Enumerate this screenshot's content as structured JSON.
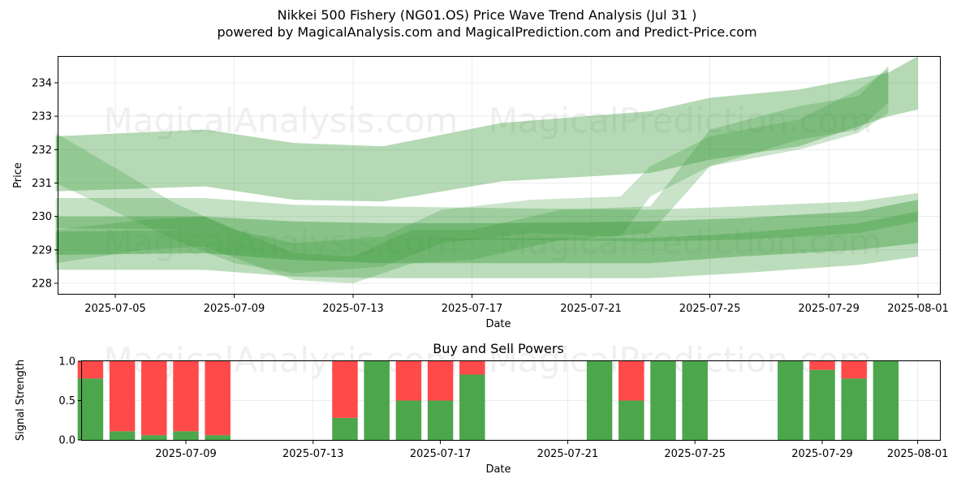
{
  "header": {
    "title": "Nikkei 500 Fishery (NG01.OS) Price Wave Trend Analysis (Jul 31 )",
    "subtitle": "powered by MagicalAnalysis.com and MagicalPrediction.com and Predict-Price.com"
  },
  "watermarks": [
    "MagicalAnalysis.com",
    "MagicalPrediction.com"
  ],
  "colors": {
    "green_band": "#3a9a3a",
    "buy": "#4ca64c",
    "sell": "#ff4a4a",
    "grid": "#e6e6e6"
  },
  "chart_data": [
    {
      "type": "area",
      "title": "",
      "xlabel": "Date",
      "ylabel": "Price",
      "x_ticks": [
        "2025-07-05",
        "2025-07-09",
        "2025-07-13",
        "2025-07-17",
        "2025-07-21",
        "2025-07-25",
        "2025-07-29",
        "2025-08-01"
      ],
      "y_ticks": [
        "228",
        "229",
        "230",
        "231",
        "232",
        "233",
        "234"
      ],
      "xlim": [
        "2025-07-02",
        "2025-08-01"
      ],
      "ylim": [
        227.65,
        234.8
      ],
      "grid": true,
      "series": [
        {
          "x": [
            "2025-07-03",
            "2025-07-08",
            "2025-07-11",
            "2025-07-14",
            "2025-07-18",
            "2025-07-23",
            "2025-07-25",
            "2025-07-28",
            "2025-07-31",
            "2025-08-01"
          ],
          "lower": [
            230.75,
            230.9,
            230.5,
            230.45,
            231.05,
            231.3,
            231.7,
            232.1,
            233.0,
            233.2
          ],
          "upper": [
            232.4,
            232.6,
            232.2,
            232.1,
            232.8,
            233.15,
            233.55,
            233.8,
            234.3,
            234.8
          ]
        },
        {
          "x": [
            "2025-07-03",
            "2025-07-08",
            "2025-07-11",
            "2025-07-14",
            "2025-07-18",
            "2025-07-23",
            "2025-07-26",
            "2025-07-30",
            "2025-08-01"
          ],
          "lower": [
            229.65,
            229.6,
            229.35,
            229.3,
            229.3,
            229.25,
            229.3,
            229.5,
            229.85
          ],
          "upper": [
            230.55,
            230.55,
            230.35,
            230.3,
            230.25,
            230.2,
            230.3,
            230.45,
            230.7
          ]
        },
        {
          "x": [
            "2025-07-03",
            "2025-07-08",
            "2025-07-11",
            "2025-07-14",
            "2025-07-18",
            "2025-07-23",
            "2025-07-26",
            "2025-07-30",
            "2025-08-01"
          ],
          "lower": [
            228.4,
            228.4,
            228.2,
            228.15,
            228.15,
            228.15,
            228.3,
            228.55,
            228.8
          ],
          "upper": [
            229.55,
            229.6,
            229.35,
            229.3,
            229.35,
            229.35,
            229.5,
            229.8,
            230.15
          ]
        },
        {
          "x": [
            "2025-07-03",
            "2025-07-08",
            "2025-07-11",
            "2025-07-14",
            "2025-07-18",
            "2025-07-23",
            "2025-07-26",
            "2025-07-30",
            "2025-08-01"
          ],
          "lower": [
            228.85,
            228.9,
            228.7,
            228.6,
            228.6,
            228.6,
            228.8,
            229.0,
            229.2
          ],
          "upper": [
            230.0,
            230.0,
            229.85,
            229.8,
            229.8,
            229.85,
            229.95,
            230.15,
            230.5
          ]
        },
        {
          "x": [
            "2025-07-03",
            "2025-07-06",
            "2025-07-08",
            "2025-07-11",
            "2025-07-13",
            "2025-07-15",
            "2025-07-17",
            "2025-07-20",
            "2025-07-23",
            "2025-07-25",
            "2025-07-28",
            "2025-07-30",
            "2025-07-31"
          ],
          "lower": [
            228.6,
            229.0,
            229.1,
            228.1,
            228.0,
            228.6,
            228.7,
            229.3,
            229.5,
            231.5,
            232.3,
            232.6,
            233.4
          ],
          "upper": [
            229.6,
            229.9,
            230.0,
            228.9,
            228.8,
            229.6,
            229.6,
            230.2,
            230.3,
            232.6,
            233.3,
            233.6,
            234.5
          ]
        },
        {
          "x": [
            "2025-07-03",
            "2025-07-07",
            "2025-07-09",
            "2025-07-11",
            "2025-07-14",
            "2025-07-16",
            "2025-07-19",
            "2025-07-22",
            "2025-07-23",
            "2025-07-25",
            "2025-07-28",
            "2025-07-30",
            "2025-07-31"
          ],
          "lower": [
            231.0,
            229.3,
            228.6,
            228.3,
            228.5,
            229.2,
            229.5,
            229.4,
            230.6,
            231.5,
            232.0,
            232.5,
            233.1
          ],
          "upper": [
            232.5,
            230.4,
            229.6,
            229.2,
            229.4,
            230.2,
            230.5,
            230.6,
            231.5,
            232.4,
            232.9,
            233.8,
            234.4
          ]
        }
      ]
    },
    {
      "type": "bar",
      "title": "Buy and Sell Powers",
      "xlabel": "Date",
      "ylabel": "Signal Strength",
      "x_ticks": [
        "2025-07-09",
        "2025-07-13",
        "2025-07-17",
        "2025-07-21",
        "2025-07-25",
        "2025-07-29",
        "2025-08-01"
      ],
      "y_ticks": [
        "0.0",
        "0.5",
        "1.0"
      ],
      "xlim": [
        "2025-07-05",
        "2025-08-01"
      ],
      "ylim": [
        0,
        1
      ],
      "grid": true,
      "categories": [
        "2025-07-06",
        "2025-07-07",
        "2025-07-08",
        "2025-07-09",
        "2025-07-10",
        "2025-07-14",
        "2025-07-15",
        "2025-07-16",
        "2025-07-17",
        "2025-07-18",
        "2025-07-22",
        "2025-07-23",
        "2025-07-24",
        "2025-07-25",
        "2025-07-28",
        "2025-07-29",
        "2025-07-30",
        "2025-07-31"
      ],
      "series": [
        {
          "name": "Buy",
          "values": [
            0.78,
            0.11,
            0.06,
            0.11,
            0.06,
            0.28,
            1.0,
            0.5,
            0.5,
            0.83,
            1.0,
            0.5,
            1.0,
            1.0,
            1.0,
            0.89,
            0.78,
            1.0
          ]
        },
        {
          "name": "Sell",
          "values": [
            0.22,
            0.89,
            0.94,
            0.89,
            0.94,
            0.72,
            0.0,
            0.5,
            0.5,
            0.17,
            0.0,
            0.5,
            0.0,
            0.0,
            0.0,
            0.11,
            0.22,
            0.0
          ]
        }
      ]
    }
  ]
}
